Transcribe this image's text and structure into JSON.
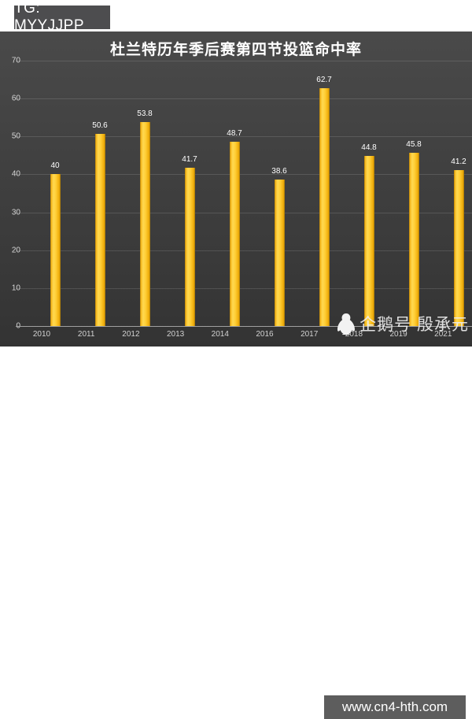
{
  "badge": {
    "label": "TG: MYYJJPP"
  },
  "chart_data": {
    "type": "bar",
    "title": "杜兰特历年季后赛第四节投篮命中率",
    "categories": [
      "2010",
      "2011",
      "2012",
      "2013",
      "2014",
      "2016",
      "2017",
      "2018",
      "2019",
      "2021"
    ],
    "values": [
      40,
      50.6,
      53.8,
      41.7,
      48.7,
      38.6,
      62.7,
      44.8,
      45.8,
      41.2
    ],
    "value_labels": [
      "40",
      "50.6",
      "53.8",
      "41.7",
      "48.7",
      "38.6",
      "62.7",
      "44.8",
      "45.8",
      "41.2"
    ],
    "xlabel": "",
    "ylabel": "",
    "ylim": [
      0,
      70
    ],
    "yticks": [
      0,
      10,
      20,
      30,
      40,
      50,
      60,
      70
    ],
    "grid": true,
    "legend": false,
    "bar_color": "#FFC425",
    "background_color": "#3F3F3F",
    "label_color": "#FFFFFF"
  },
  "watermark": {
    "icon": "penguin-icon",
    "text": "企鹅号 殷承元"
  },
  "footer": {
    "url": "www.cn4-hth.com"
  }
}
